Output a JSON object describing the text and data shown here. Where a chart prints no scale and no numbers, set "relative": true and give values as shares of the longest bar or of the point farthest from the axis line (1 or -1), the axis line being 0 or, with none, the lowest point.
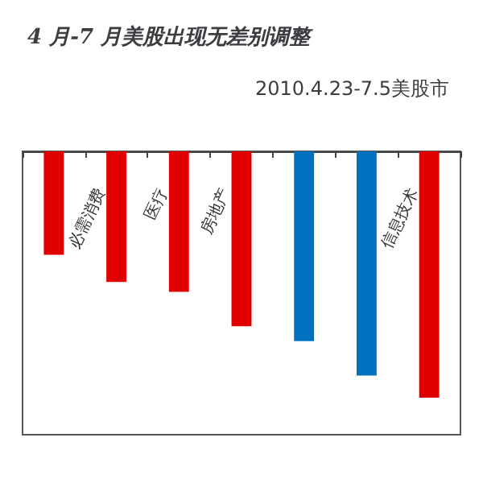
{
  "chart_data": {
    "type": "bar",
    "title": "4 月-7 月美股出现无差别调整",
    "subtitle": "2010.4.23-7.5美股市",
    "relative": true,
    "categories": [
      null,
      "必需消费",
      "医疗",
      "房地产",
      null,
      null,
      "信息技术"
    ],
    "values": [
      -0.42,
      -0.53,
      -0.57,
      -0.71,
      -0.77,
      -0.91,
      -1
    ],
    "colors": [
      "#e00000",
      "#e00000",
      "#e00000",
      "#e00000",
      "#0070c0",
      "#0070c0",
      "#e00000"
    ],
    "grid": false
  }
}
